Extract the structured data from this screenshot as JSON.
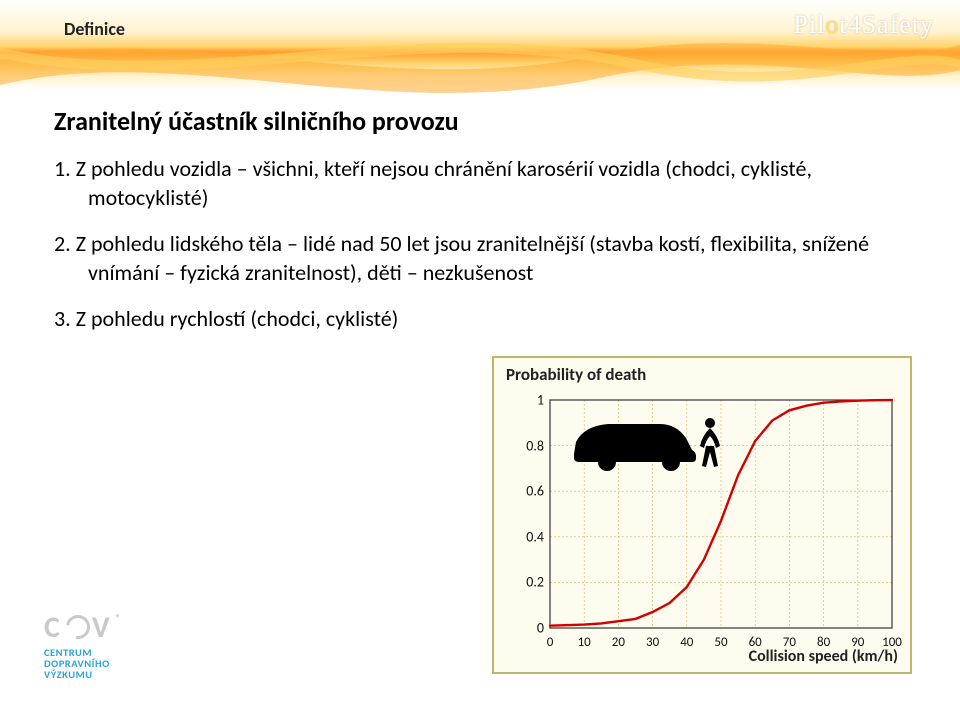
{
  "header": {
    "category": "Definice",
    "logo_text": "Pilot4Safety",
    "banner_colors": {
      "mid": "#ffd36b",
      "deep": "#ff9e2c"
    }
  },
  "title": "Zranitelný účastník silničního provozu",
  "bullets": [
    {
      "n": "1.",
      "text": "Z pohledu vozidla – všichni, kteří nejsou chránění karosérií vozidla (chodci, cyklisté, motocyklisté)"
    },
    {
      "n": "2.",
      "text": "Z pohledu lidského těla – lidé nad 50 let jsou zranitelnější (stavba kostí, flexibilita, snížené vnímání – fyzická zranitelnost), děti – nezkušenost"
    },
    {
      "n": "3.",
      "text": "Z pohledu rychlostí (chodci, cyklisté)"
    }
  ],
  "chart": {
    "type": "line",
    "title": "Probability of death",
    "xlabel": "Collision speed (km/h)",
    "xlim": [
      0,
      100
    ],
    "xtick_step": 10,
    "ylim": [
      0,
      1
    ],
    "ytick_step": 0.2,
    "ytick_labels": [
      "0",
      "0.2",
      "0.4",
      "0.6",
      "0.8",
      "1"
    ],
    "xtick_labels": [
      "0",
      "10",
      "20",
      "30",
      "40",
      "50",
      "60",
      "70",
      "80",
      "90",
      "100"
    ],
    "background": "#fefcee",
    "border_color": "#bdb76b",
    "grid_color": "#cdb36a",
    "line_color": "#d40000",
    "line_width": 2.4,
    "curve_points": [
      [
        0,
        0.01
      ],
      [
        10,
        0.015
      ],
      [
        15,
        0.02
      ],
      [
        20,
        0.03
      ],
      [
        25,
        0.04
      ],
      [
        30,
        0.07
      ],
      [
        35,
        0.11
      ],
      [
        40,
        0.18
      ],
      [
        45,
        0.3
      ],
      [
        50,
        0.47
      ],
      [
        55,
        0.67
      ],
      [
        60,
        0.82
      ],
      [
        65,
        0.91
      ],
      [
        70,
        0.955
      ],
      [
        75,
        0.975
      ],
      [
        80,
        0.988
      ],
      [
        85,
        0.994
      ],
      [
        90,
        0.997
      ],
      [
        95,
        0.999
      ],
      [
        100,
        1.0
      ]
    ],
    "illustration": {
      "type": "car-pedestrian-silhouette",
      "fill": "#000000"
    }
  },
  "footer_logo": {
    "abbr": "CDV",
    "sublines": [
      "CENTRUM",
      "DOPRAVNÍHO",
      "VÝZKUMU"
    ],
    "reg_mark": "®",
    "abbr_color": "#c9c8cc",
    "sub_color": "#2aa3d8"
  }
}
